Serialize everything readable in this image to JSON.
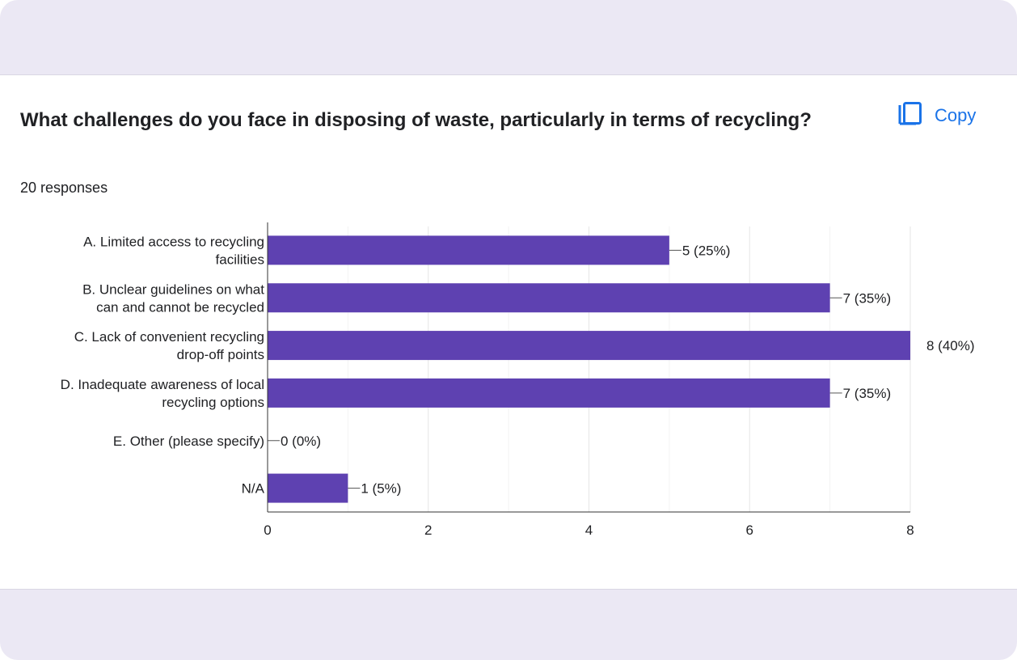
{
  "question": {
    "title": "What challenges do you face in disposing of waste, particularly in terms of recycling?",
    "responses": "20 responses"
  },
  "copy_button": {
    "label": "Copy",
    "icon": "copy-icon",
    "color": "#1a73e8"
  },
  "chart_data": {
    "type": "bar",
    "orientation": "horizontal",
    "categories": [
      [
        "A. Limited access to recycling",
        "facilities"
      ],
      [
        "B. Unclear guidelines on what",
        "can and cannot be recycled"
      ],
      [
        "C. Lack of convenient recycling",
        "drop-off points"
      ],
      [
        "D. Inadequate awareness of local",
        "recycling options"
      ],
      [
        "E. Other (please specify)"
      ],
      [
        "N/A"
      ]
    ],
    "values": [
      5,
      7,
      8,
      7,
      0,
      1
    ],
    "data_labels": [
      "5 (25%)",
      "7 (35%)",
      "8 (40%)",
      "7 (35%)",
      "0 (0%)",
      "1 (5%)"
    ],
    "xlim": [
      0,
      8
    ],
    "xticks": [
      "0",
      "2",
      "4",
      "6",
      "8"
    ],
    "grid": true,
    "bar_color": "#5e41b1"
  }
}
